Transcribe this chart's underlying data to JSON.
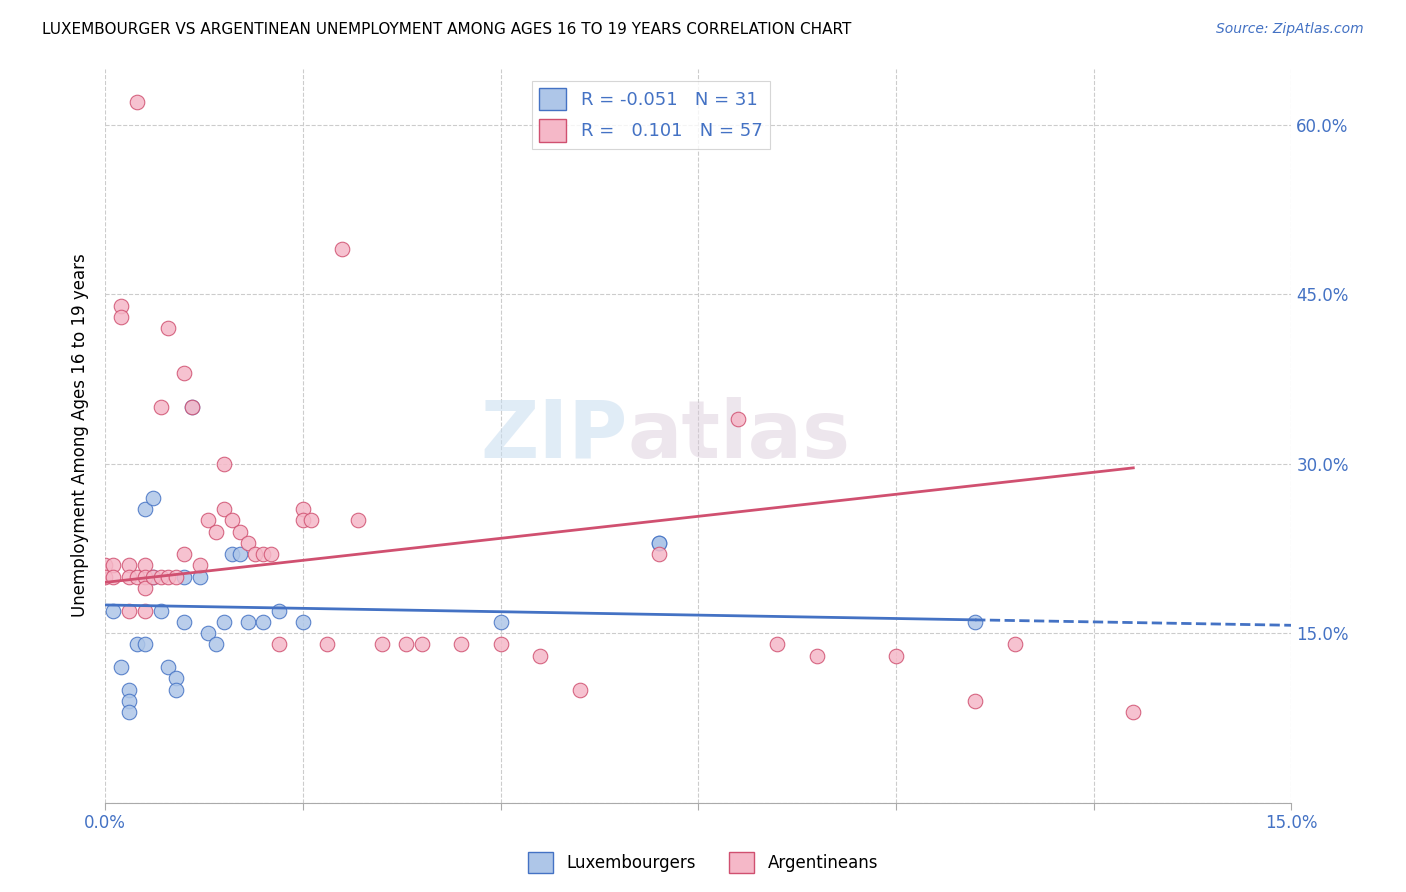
{
  "title": "LUXEMBOURGER VS ARGENTINEAN UNEMPLOYMENT AMONG AGES 16 TO 19 YEARS CORRELATION CHART",
  "source": "Source: ZipAtlas.com",
  "ylabel": "Unemployment Among Ages 16 to 19 years",
  "xlim": [
    0.0,
    0.15
  ],
  "ylim": [
    0.0,
    0.65
  ],
  "x_ticks": [
    0.0,
    0.025,
    0.05,
    0.075,
    0.1,
    0.125,
    0.15
  ],
  "y_ticks": [
    0.0,
    0.15,
    0.3,
    0.45,
    0.6
  ],
  "y_tick_labels_right": [
    "",
    "15.0%",
    "30.0%",
    "45.0%",
    "60.0%"
  ],
  "legend_r_lux": "-0.051",
  "legend_n_lux": "31",
  "legend_r_arg": "0.101",
  "legend_n_arg": "57",
  "lux_color": "#aec6e8",
  "arg_color": "#f5b8c8",
  "lux_line_color": "#4472c4",
  "arg_line_color": "#d05070",
  "watermark_zip": "ZIP",
  "watermark_atlas": "atlas",
  "lux_scatter_x": [
    0.001,
    0.002,
    0.003,
    0.003,
    0.003,
    0.004,
    0.005,
    0.005,
    0.006,
    0.006,
    0.007,
    0.008,
    0.009,
    0.009,
    0.01,
    0.01,
    0.011,
    0.012,
    0.013,
    0.014,
    0.015,
    0.016,
    0.017,
    0.018,
    0.02,
    0.022,
    0.025,
    0.05,
    0.07,
    0.07,
    0.11
  ],
  "lux_scatter_y": [
    0.17,
    0.12,
    0.1,
    0.09,
    0.08,
    0.14,
    0.26,
    0.14,
    0.27,
    0.2,
    0.17,
    0.12,
    0.11,
    0.1,
    0.2,
    0.16,
    0.35,
    0.2,
    0.15,
    0.14,
    0.16,
    0.22,
    0.22,
    0.16,
    0.16,
    0.17,
    0.16,
    0.16,
    0.23,
    0.23,
    0.16
  ],
  "arg_scatter_x": [
    0.0,
    0.0,
    0.001,
    0.001,
    0.002,
    0.002,
    0.003,
    0.003,
    0.003,
    0.004,
    0.004,
    0.005,
    0.005,
    0.005,
    0.005,
    0.006,
    0.007,
    0.007,
    0.008,
    0.008,
    0.009,
    0.01,
    0.01,
    0.011,
    0.012,
    0.013,
    0.014,
    0.015,
    0.015,
    0.016,
    0.017,
    0.018,
    0.019,
    0.02,
    0.021,
    0.022,
    0.025,
    0.025,
    0.026,
    0.028,
    0.03,
    0.032,
    0.035,
    0.038,
    0.04,
    0.045,
    0.05,
    0.055,
    0.06,
    0.07,
    0.08,
    0.085,
    0.09,
    0.1,
    0.11,
    0.115,
    0.13
  ],
  "arg_scatter_y": [
    0.21,
    0.2,
    0.21,
    0.2,
    0.44,
    0.43,
    0.21,
    0.2,
    0.17,
    0.62,
    0.2,
    0.21,
    0.2,
    0.19,
    0.17,
    0.2,
    0.35,
    0.2,
    0.42,
    0.2,
    0.2,
    0.38,
    0.22,
    0.35,
    0.21,
    0.25,
    0.24,
    0.3,
    0.26,
    0.25,
    0.24,
    0.23,
    0.22,
    0.22,
    0.22,
    0.14,
    0.26,
    0.25,
    0.25,
    0.14,
    0.49,
    0.25,
    0.14,
    0.14,
    0.14,
    0.14,
    0.14,
    0.13,
    0.1,
    0.22,
    0.34,
    0.14,
    0.13,
    0.13,
    0.09,
    0.14,
    0.08
  ]
}
